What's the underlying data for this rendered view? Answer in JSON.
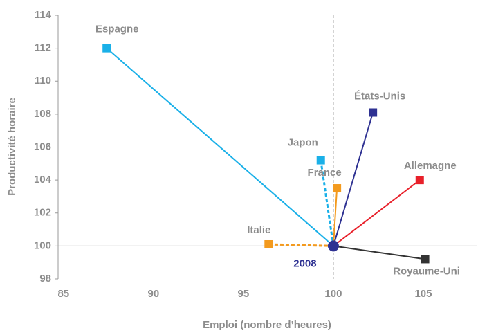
{
  "chart_data": {
    "type": "scatter",
    "xlabel": "Emploi (nombre d’heures)",
    "ylabel": "Productivité horaire",
    "xlim": [
      84.7,
      108
    ],
    "ylim": [
      98,
      114
    ],
    "xticks": [
      85,
      90,
      95,
      100,
      105
    ],
    "yticks": [
      98,
      100,
      102,
      104,
      106,
      108,
      110,
      112,
      114
    ],
    "origin": {
      "label": "2008",
      "x": 100,
      "y": 100,
      "color": "#2e3192"
    },
    "series": [
      {
        "name": "Espagne",
        "color": "#1ab0e8",
        "style": "solid",
        "x": 87.4,
        "y": 112.0
      },
      {
        "name": "Japon",
        "color": "#1ab0e8",
        "style": "dashed",
        "x": 99.3,
        "y": 105.2
      },
      {
        "name": "France",
        "color": "#f39a1e",
        "style": "solid",
        "x": 100.2,
        "y": 103.5
      },
      {
        "name": "États-Unis",
        "color": "#2e3192",
        "style": "solid",
        "x": 102.2,
        "y": 108.1
      },
      {
        "name": "Allemagne",
        "color": "#e8202a",
        "style": "solid",
        "x": 104.8,
        "y": 104.0
      },
      {
        "name": "Royaume-Uni",
        "color": "#333333",
        "style": "solid",
        "x": 105.1,
        "y": 99.2
      },
      {
        "name": "Italie",
        "color": "#f39a1e",
        "style": "dashed",
        "x": 96.4,
        "y": 100.1
      }
    ]
  }
}
